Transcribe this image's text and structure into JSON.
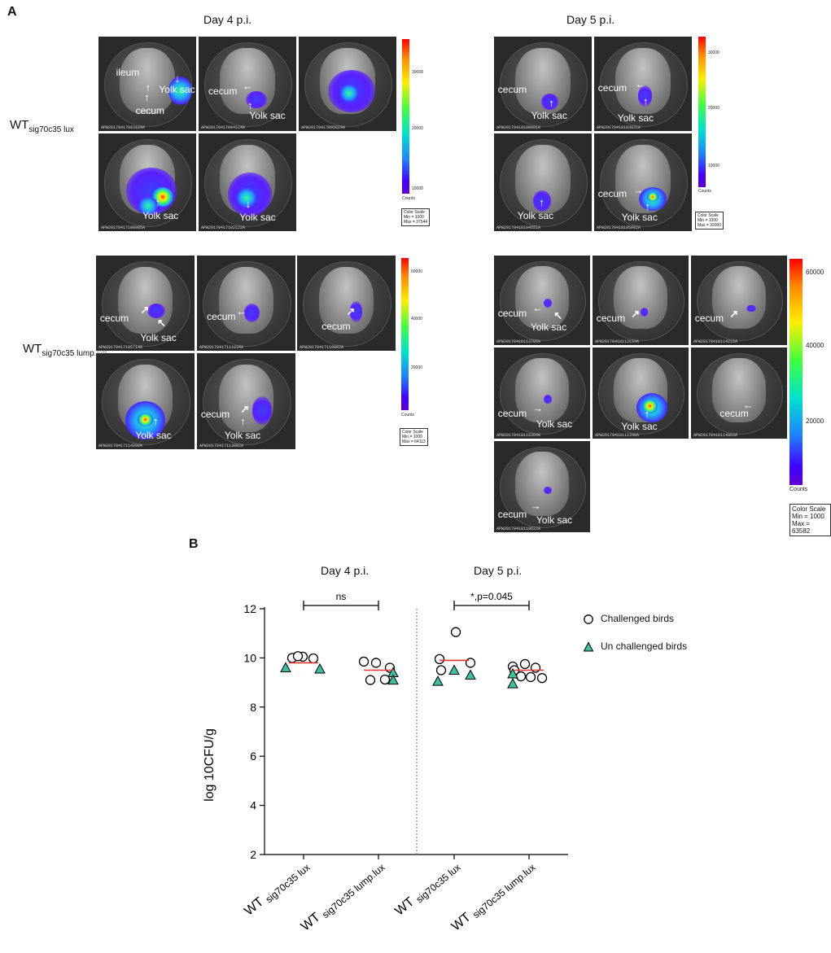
{
  "panel_a": {
    "letter": "A",
    "day4_title": "Day 4 p.i.",
    "day5_title": "Day 5 p.i.",
    "row1_label_main": "WT",
    "row1_label_sub": "sig70c35 lux",
    "row2_label_main": "WT",
    "row2_label_sub": "sig70c35 lump.lux",
    "scales": [
      {
        "ticks": [
          "30000",
          "20000",
          "10000"
        ],
        "counts": "Counts",
        "box": [
          "Color Scale",
          "Min = 1000",
          "Max = 37544"
        ]
      },
      {
        "ticks": [
          "30000",
          "20000",
          "10000"
        ],
        "counts": "Counts",
        "box": [
          "Color Scale",
          "Min = 1000",
          "Max = 33000"
        ]
      },
      {
        "ticks": [
          "60000",
          "40000",
          "20000"
        ],
        "counts": "Counts",
        "box": [
          "Color Scale",
          "Min = 1000",
          "Max = 64113"
        ]
      },
      {
        "ticks": [
          "60000",
          "40000",
          "20000"
        ],
        "counts": "Counts",
        "box": [
          "Color Scale",
          "Min = 1000",
          "Max = 63582"
        ]
      }
    ],
    "tile_ids": [
      "APW20170417093104A",
      "APW20170417094124A",
      "APW20170417095624A",
      "APW20170417100905A",
      "APW20170417102122A",
      "APW20170418100601A",
      "APW20170418103031A",
      "APW20170418104551A",
      "APW20170418105902A",
      "APW20170417105714A",
      "APW20170417111834A",
      "APW20170417110002A",
      "APW20170417114200A",
      "APW20170417113002A",
      "APW20170418113705A",
      "APW20170418113154A",
      "APW20170418114215A",
      "APW20170418115304A",
      "APW20170418111340A",
      "APW20170418114803A",
      "APW20170418110622A"
    ],
    "labels": {
      "ileum": "ileum",
      "cecum": "cecum",
      "yolk_sac": "Yolk sac"
    }
  },
  "panel_b": {
    "letter": "B",
    "day4_title": "Day 4 p.i.",
    "day5_title": "Day 5 p.i.",
    "sig_day4": "ns",
    "sig_day5": "*,p=0.045",
    "legend": [
      {
        "label": "Challenged birds",
        "marker": "circle"
      },
      {
        "label": "Un challenged birds",
        "marker": "triangle"
      }
    ],
    "xtick_main": "WT",
    "xtick_subs": [
      "sig70c35 lux",
      "sig70c35 lump.lux",
      "sig70c35 lux",
      "sig70c35 lump.lux"
    ]
  },
  "colors": {
    "triangle_fill": "#3dbfa0",
    "median": "#e0352b"
  },
  "chart_data": {
    "type": "scatter",
    "title": "",
    "xlabel": "",
    "ylabel": "log 10CFU/g",
    "ylim": [
      2,
      12
    ],
    "yticks": [
      2,
      4,
      6,
      8,
      10,
      12
    ],
    "grid": false,
    "legend_placement": "right",
    "categories": [
      "WT sig70c35 lux (Day 4)",
      "WT sig70c35 lump.lux (Day 4)",
      "WT sig70c35 lux (Day 5)",
      "WT sig70c35 lump.lux (Day 5)"
    ],
    "series": [
      {
        "name": "Challenged birds",
        "marker": "circle",
        "points": [
          {
            "cat": 0,
            "y": 10.0
          },
          {
            "cat": 0,
            "y": 10.05
          },
          {
            "cat": 0,
            "y": 9.98
          },
          {
            "cat": 0,
            "y": 10.07
          },
          {
            "cat": 1,
            "y": 9.85
          },
          {
            "cat": 1,
            "y": 9.8
          },
          {
            "cat": 1,
            "y": 9.6
          },
          {
            "cat": 1,
            "y": 9.1
          },
          {
            "cat": 1,
            "y": 9.12
          },
          {
            "cat": 2,
            "y": 9.95
          },
          {
            "cat": 2,
            "y": 11.05
          },
          {
            "cat": 2,
            "y": 9.8
          },
          {
            "cat": 2,
            "y": 9.5
          },
          {
            "cat": 3,
            "y": 9.65
          },
          {
            "cat": 3,
            "y": 9.75
          },
          {
            "cat": 3,
            "y": 9.6
          },
          {
            "cat": 3,
            "y": 9.5
          },
          {
            "cat": 3,
            "y": 9.25
          },
          {
            "cat": 3,
            "y": 9.22
          },
          {
            "cat": 3,
            "y": 9.18
          }
        ]
      },
      {
        "name": "Un challenged birds",
        "marker": "triangle",
        "points": [
          {
            "cat": 0,
            "y": 9.6
          },
          {
            "cat": 0,
            "y": 9.55
          },
          {
            "cat": 1,
            "y": 9.4
          },
          {
            "cat": 1,
            "y": 9.1
          },
          {
            "cat": 2,
            "y": 9.05
          },
          {
            "cat": 2,
            "y": 9.5
          },
          {
            "cat": 2,
            "y": 9.3
          },
          {
            "cat": 3,
            "y": 9.35
          },
          {
            "cat": 3,
            "y": 8.95
          }
        ]
      }
    ],
    "medians": [
      9.8,
      9.5,
      9.9,
      9.5
    ]
  }
}
